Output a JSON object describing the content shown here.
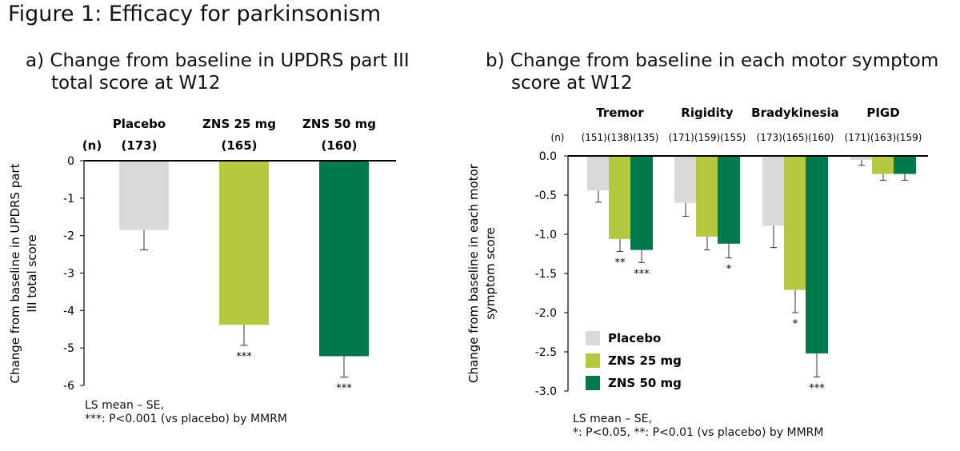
{
  "figure_title": "Figure 1: Efficacy for parkinsonism",
  "colors": {
    "placebo": "#d9d9d9",
    "zns25": "#b5c840",
    "zns50": "#007a4a"
  },
  "chart_data": [
    {
      "type": "bar",
      "title_line1": "a) Change from baseline in UPDRS part III",
      "title_line2": "total score at W12",
      "ylabel_line1": "Change from baseline in UPDRS part",
      "ylabel_line2": "III total score",
      "n_label": "(n)",
      "categories": [
        "Placebo",
        "ZNS 25 mg",
        "ZNS 50 mg"
      ],
      "n_values": [
        "(173)",
        "(165)",
        "(160)"
      ],
      "values": [
        -1.85,
        -4.38,
        -5.22
      ],
      "errors": [
        0.53,
        0.55,
        0.56
      ],
      "significance": [
        "",
        "***",
        "***"
      ],
      "ylim": [
        -6,
        0
      ],
      "yticks": [
        0,
        -1,
        -2,
        -3,
        -4,
        -5,
        -6
      ],
      "ytick_labels": [
        "0",
        "-1",
        "-2",
        "-3",
        "-4",
        "-5",
        "-6"
      ],
      "note_line1": "LS mean – SE,",
      "note_line2": "***: P<0.001 (vs placebo) by MMRM"
    },
    {
      "type": "bar",
      "title_line1": "b) Change from baseline in each motor symptom",
      "title_line2": "score at W12",
      "ylabel_line1": "Change from baseline in each motor",
      "ylabel_line2": "symptom score",
      "n_label": "(n)",
      "categories": [
        "Tremor",
        "Rigidity",
        "Bradykinesia",
        "PIGD"
      ],
      "n_labels": [
        "(151)(138)(135)",
        "(171)(159)(155)",
        "(173)(165)(160)",
        "(171)(163)(159)"
      ],
      "series": [
        {
          "name": "Placebo",
          "values": [
            -0.44,
            -0.6,
            -0.89,
            -0.05
          ],
          "errors": [
            0.15,
            0.17,
            0.28,
            0.07
          ],
          "significance": [
            "",
            "",
            "",
            ""
          ]
        },
        {
          "name": "ZNS 25 mg",
          "values": [
            -1.06,
            -1.03,
            -1.71,
            -0.23
          ],
          "errors": [
            0.16,
            0.17,
            0.29,
            0.08
          ],
          "significance": [
            "**",
            "",
            "*",
            ""
          ]
        },
        {
          "name": "ZNS 50 mg",
          "values": [
            -1.2,
            -1.12,
            -2.52,
            -0.23
          ],
          "errors": [
            0.16,
            0.18,
            0.3,
            0.08
          ],
          "significance": [
            "***",
            "*",
            "***",
            ""
          ]
        }
      ],
      "ylim": [
        -3.0,
        0.0
      ],
      "yticks": [
        0,
        -0.5,
        -1.0,
        -1.5,
        -2.0,
        -2.5,
        -3.0
      ],
      "ytick_labels": [
        "0.0",
        "-0.5",
        "-1.0",
        "-1.5",
        "-2.0",
        "-2.5",
        "-3.0"
      ],
      "legend_position": "bottom-left",
      "note_line1": "LS mean – SE,",
      "note_line2": "*: P<0.05, **: P<0.01 (vs placebo) by MMRM"
    }
  ]
}
